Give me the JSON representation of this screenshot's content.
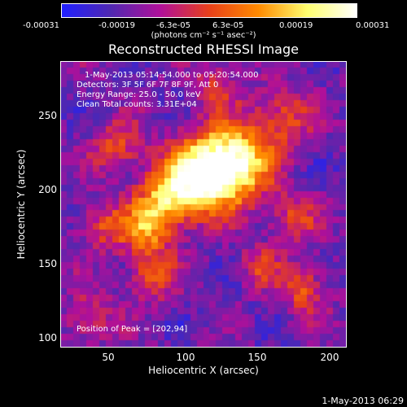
{
  "colorbar": {
    "ticks": [
      "-0.00031",
      "-0.00019",
      "-6.3e-05",
      "6.3e-05",
      "0.00019",
      "0.00031"
    ],
    "unit": "(photons cm⁻² s⁻¹ asec⁻²)",
    "colors": [
      "#2020ff",
      "#5028b0",
      "#b0109a",
      "#e8401a",
      "#ff8a00",
      "#ffff70",
      "#ffffff"
    ]
  },
  "title": "Reconstructed RHESSI Image",
  "info": {
    "time_range": "1-May-2013 05:14:54.000 to 05:20:54.000",
    "detectors": "Detectors: 3F 5F 6F 7F 8F 9F, Att 0",
    "energy": "Energy Range: 25.0 - 50.0 keV",
    "clean_counts": "Clean     Total counts: 3.31E+04",
    "peak": "Position of Peak = [202,94]"
  },
  "chart_data": {
    "type": "heatmap",
    "title": "Reconstructed RHESSI Image",
    "xlabel": "Heliocentric X (arcsec)",
    "ylabel": "Heliocentric Y (arcsec)",
    "xlim": [
      15,
      210
    ],
    "ylim": [
      95,
      290
    ],
    "x_ticks": [
      "50",
      "100",
      "150",
      "200"
    ],
    "y_ticks": [
      "100",
      "150",
      "200",
      "250"
    ],
    "value_range": [
      -0.00031,
      0.00031
    ],
    "peak_position": [
      202,
      94
    ]
  },
  "timestamp": "1-May-2013 06:29"
}
